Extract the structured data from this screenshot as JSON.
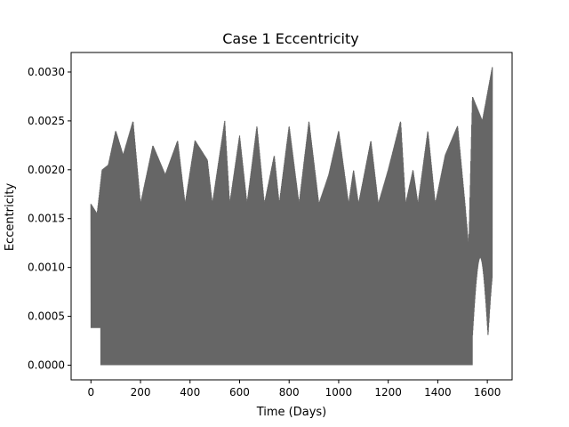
{
  "chart_data": {
    "type": "line",
    "title": "Case 1 Eccentricity",
    "xlabel": "Time (Days)",
    "ylabel": "Eccentricity",
    "xlim": [
      -80,
      1700
    ],
    "ylim": [
      -0.00015,
      0.0032
    ],
    "xticks": [
      0,
      200,
      400,
      800,
      1000,
      1200,
      1400,
      1600
    ],
    "xticks_all": [
      0,
      200,
      400,
      600,
      800,
      1000,
      1200,
      1400,
      1600
    ],
    "yticks": [
      0.0,
      0.0005,
      0.001,
      0.0015,
      0.002,
      0.0025,
      0.003
    ],
    "xtick_labels": [
      "0",
      "200",
      "400",
      "600",
      "800",
      "1000",
      "1200",
      "1400",
      "1600"
    ],
    "ytick_labels": [
      "0.0000",
      "0.0005",
      "0.0010",
      "0.0015",
      "0.0020",
      "0.0025",
      "0.0030"
    ],
    "grid": false,
    "legend": "none",
    "series": [
      {
        "color": "#666666",
        "envelope_upper": [
          [
            0,
            0.00165
          ],
          [
            25,
            0.00155
          ],
          [
            45,
            0.002
          ],
          [
            70,
            0.00205
          ],
          [
            100,
            0.0024
          ],
          [
            130,
            0.00215
          ],
          [
            170,
            0.0025
          ],
          [
            200,
            0.00165
          ],
          [
            250,
            0.00225
          ],
          [
            300,
            0.00195
          ],
          [
            350,
            0.0023
          ],
          [
            380,
            0.00165
          ],
          [
            420,
            0.0023
          ],
          [
            470,
            0.0021
          ],
          [
            490,
            0.00165
          ],
          [
            540,
            0.0025
          ],
          [
            560,
            0.00165
          ],
          [
            600,
            0.00235
          ],
          [
            630,
            0.00165
          ],
          [
            670,
            0.00245
          ],
          [
            700,
            0.00165
          ],
          [
            740,
            0.00215
          ],
          [
            760,
            0.00165
          ],
          [
            800,
            0.00245
          ],
          [
            840,
            0.00165
          ],
          [
            880,
            0.0025
          ],
          [
            920,
            0.00165
          ],
          [
            960,
            0.00195
          ],
          [
            1000,
            0.0024
          ],
          [
            1040,
            0.00165
          ],
          [
            1060,
            0.002
          ],
          [
            1080,
            0.00165
          ],
          [
            1130,
            0.0023
          ],
          [
            1160,
            0.00165
          ],
          [
            1200,
            0.002
          ],
          [
            1250,
            0.0025
          ],
          [
            1270,
            0.00165
          ],
          [
            1300,
            0.002
          ],
          [
            1320,
            0.00165
          ],
          [
            1360,
            0.0024
          ],
          [
            1390,
            0.00165
          ],
          [
            1430,
            0.00215
          ],
          [
            1480,
            0.00245
          ],
          [
            1510,
            0.00165
          ],
          [
            1525,
            0.0012
          ],
          [
            1540,
            0.00275
          ],
          [
            1580,
            0.0025
          ],
          [
            1620,
            0.00305
          ]
        ],
        "envelope_lower_min": 0.0
      }
    ]
  }
}
